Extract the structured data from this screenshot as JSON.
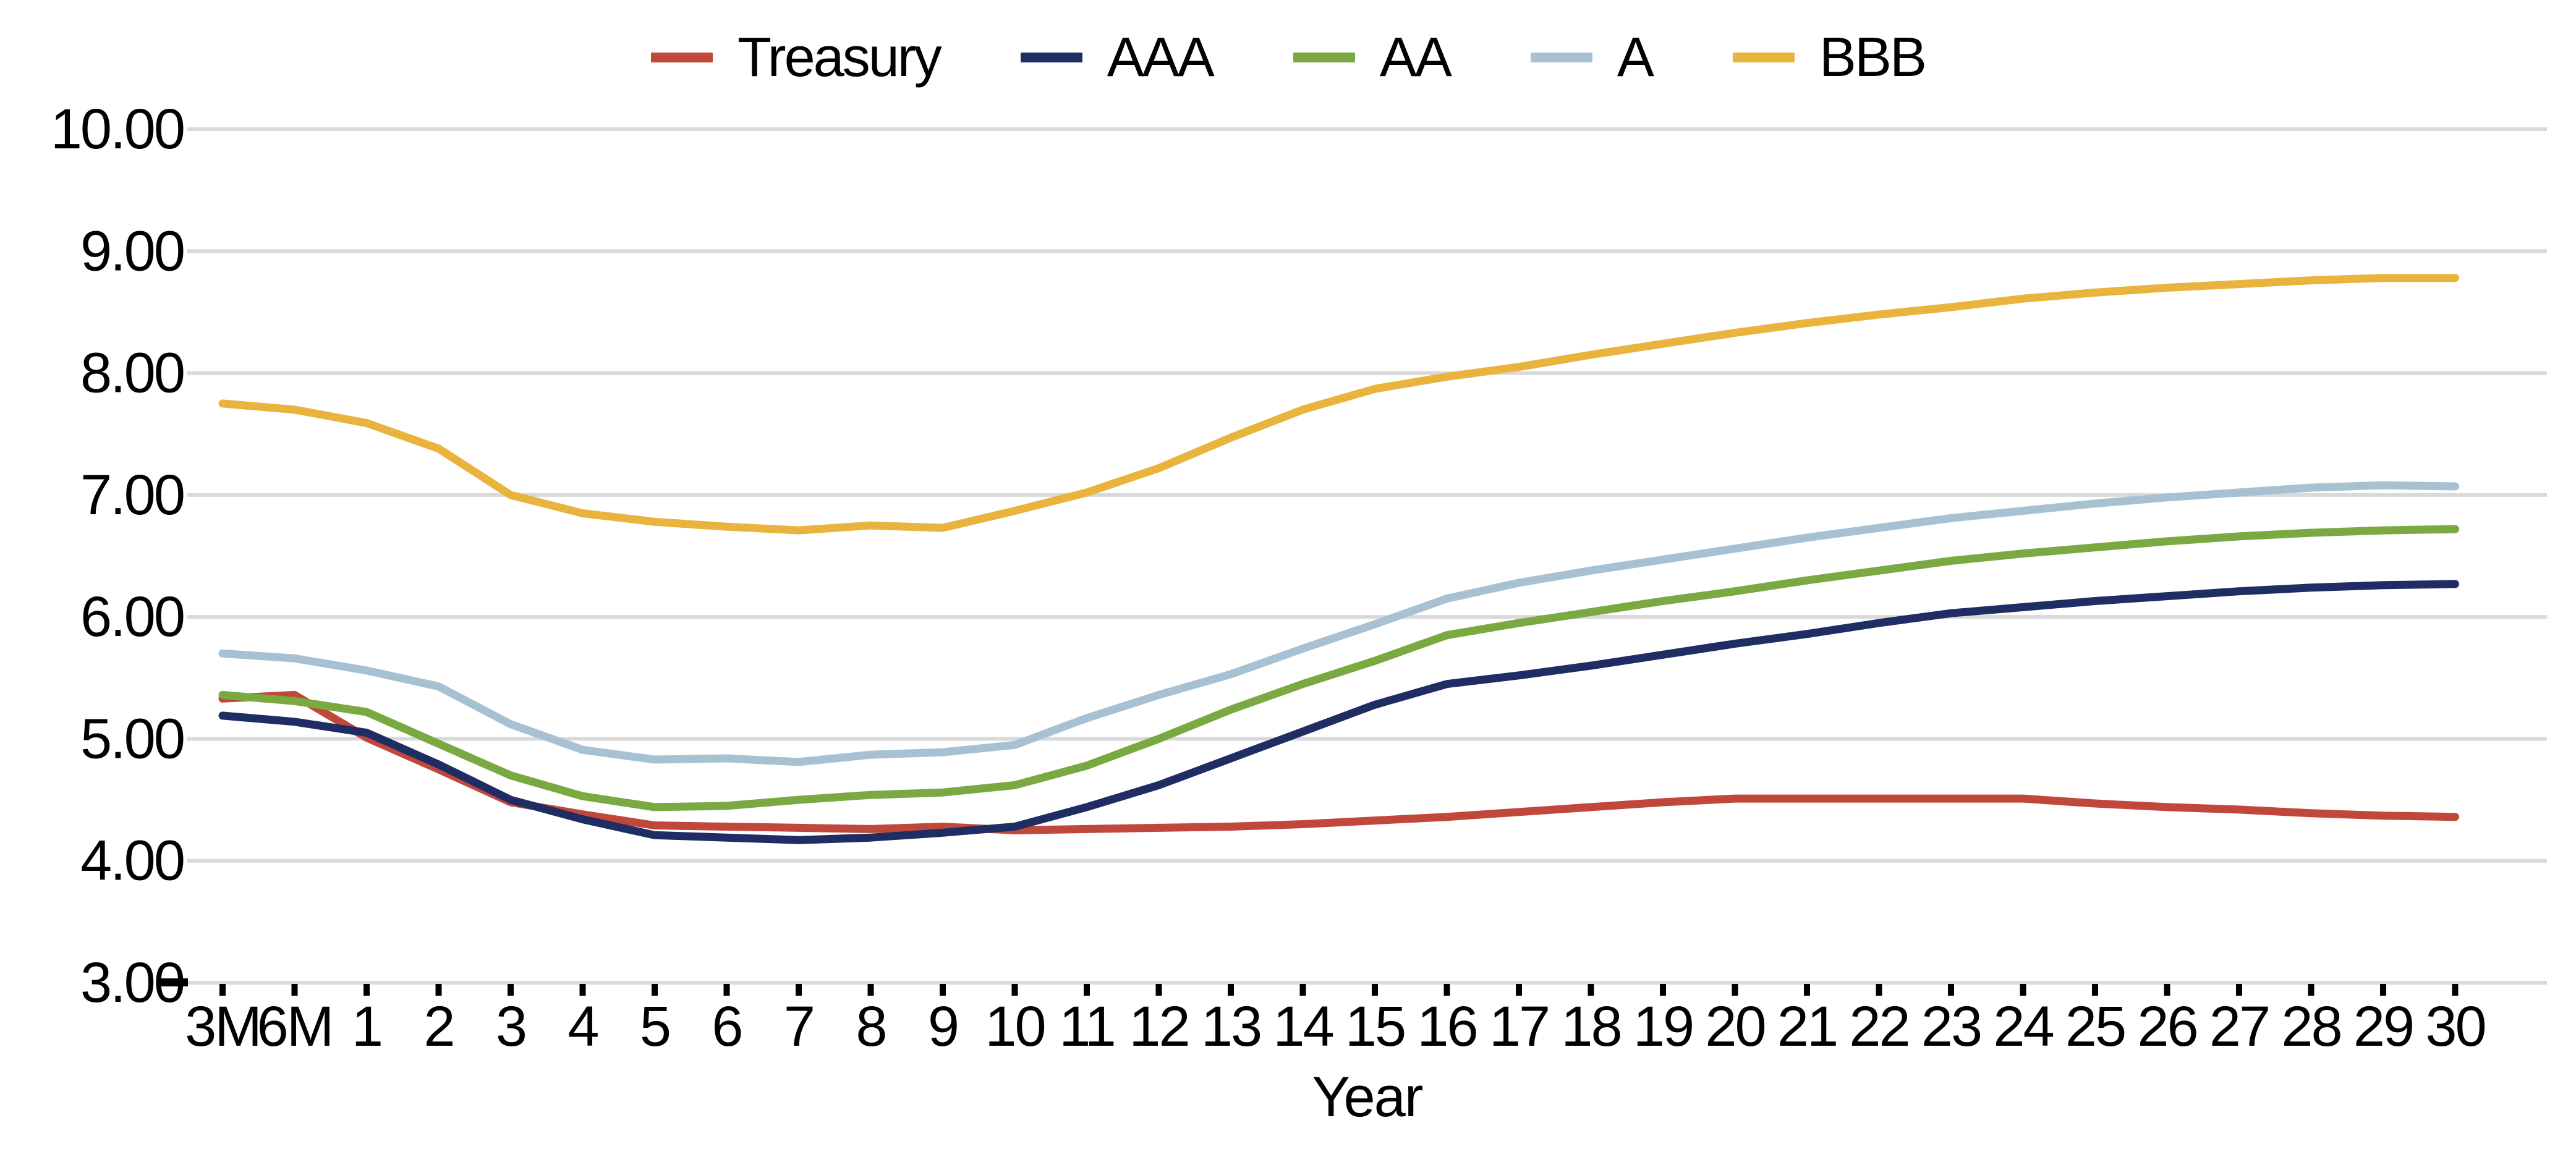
{
  "chart_data": {
    "type": "line",
    "title": "",
    "xlabel": "Year",
    "ylabel": "",
    "ylim": [
      3.0,
      10.0
    ],
    "ytick_step": 1.0,
    "y_tick_labels": [
      "10.00",
      "9.00",
      "8.00",
      "7.00",
      "6.00",
      "5.00",
      "4.00",
      "3.00"
    ],
    "grid": "horizontal",
    "legend_position": "top-center",
    "gridline_color": "#D9D9D9",
    "axis_line_color": "#D9D9D9",
    "axis_cap_color": "#000000",
    "tick_color": "#000000",
    "label_color": "#000000",
    "categories": [
      "3M",
      "6M",
      "1",
      "2",
      "3",
      "4",
      "5",
      "6",
      "7",
      "8",
      "9",
      "10",
      "11",
      "12",
      "13",
      "14",
      "15",
      "16",
      "17",
      "18",
      "19",
      "20",
      "21",
      "22",
      "23",
      "24",
      "25",
      "26",
      "27",
      "28",
      "29",
      "30"
    ],
    "series": [
      {
        "name": "Treasury",
        "color": "#C0483B",
        "values": [
          5.33,
          5.36,
          5.01,
          4.75,
          4.48,
          4.38,
          4.29,
          4.28,
          4.27,
          4.26,
          4.28,
          4.25,
          4.26,
          4.27,
          4.28,
          4.3,
          4.33,
          4.36,
          4.4,
          4.44,
          4.48,
          4.51,
          4.51,
          4.51,
          4.51,
          4.51,
          4.47,
          4.44,
          4.42,
          4.39,
          4.37,
          4.36
        ]
      },
      {
        "name": "AAA",
        "color": "#1F2D63",
        "values": [
          5.19,
          5.14,
          5.05,
          4.79,
          4.5,
          4.34,
          4.21,
          4.19,
          4.17,
          4.19,
          4.23,
          4.28,
          4.44,
          4.62,
          4.84,
          5.06,
          5.28,
          5.45,
          5.52,
          5.6,
          5.69,
          5.78,
          5.86,
          5.95,
          6.03,
          6.08,
          6.13,
          6.17,
          6.21,
          6.24,
          6.26,
          6.27
        ]
      },
      {
        "name": "AA",
        "color": "#7AA942",
        "values": [
          5.36,
          5.31,
          5.22,
          4.96,
          4.7,
          4.53,
          4.44,
          4.45,
          4.5,
          4.54,
          4.56,
          4.62,
          4.78,
          5.0,
          5.24,
          5.45,
          5.64,
          5.85,
          5.95,
          6.04,
          6.13,
          6.21,
          6.3,
          6.38,
          6.46,
          6.52,
          6.57,
          6.62,
          6.66,
          6.69,
          6.71,
          6.72
        ]
      },
      {
        "name": "A",
        "color": "#A8C1D2",
        "values": [
          5.7,
          5.66,
          5.56,
          5.43,
          5.12,
          4.91,
          4.83,
          4.84,
          4.81,
          4.87,
          4.89,
          4.95,
          5.17,
          5.36,
          5.53,
          5.74,
          5.94,
          6.15,
          6.28,
          6.38,
          6.47,
          6.56,
          6.65,
          6.73,
          6.81,
          6.87,
          6.93,
          6.98,
          7.02,
          7.06,
          7.08,
          7.07
        ]
      },
      {
        "name": "BBB",
        "color": "#E8B43E",
        "values": [
          7.75,
          7.7,
          7.59,
          7.38,
          7.0,
          6.85,
          6.78,
          6.74,
          6.71,
          6.75,
          6.73,
          6.87,
          7.02,
          7.22,
          7.47,
          7.7,
          7.87,
          7.97,
          8.05,
          8.15,
          8.24,
          8.33,
          8.41,
          8.48,
          8.54,
          8.61,
          8.66,
          8.7,
          8.73,
          8.76,
          8.78,
          8.78
        ]
      }
    ]
  },
  "layout_labels": {
    "x_axis_title": "Year"
  }
}
